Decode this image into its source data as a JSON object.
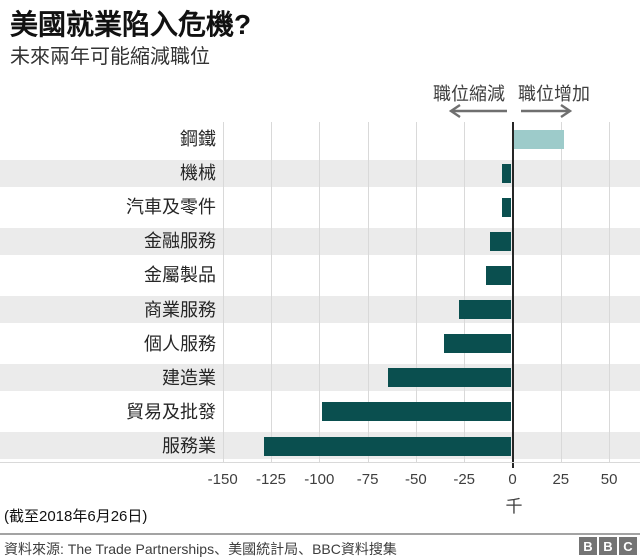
{
  "header": {
    "title": "美國就業陷入危機?",
    "subtitle": "未來兩年可能縮減職位"
  },
  "annotations": {
    "decrease_label": "職位縮減",
    "increase_label": "職位增加"
  },
  "chart_data": {
    "type": "bar",
    "orientation": "horizontal",
    "title": "美國就業陷入危機?",
    "subtitle": "未來兩年可能縮減職位",
    "categories": [
      "鋼鐵",
      "機械",
      "汽車及零件",
      "金融服務",
      "金屬製品",
      "商業服務",
      "個人服務",
      "建造業",
      "貿易及批發",
      "服務業"
    ],
    "values": [
      26,
      -5,
      -5,
      -11,
      -13,
      -27,
      -35,
      -64,
      -98,
      -128
    ],
    "unit_label": "千",
    "xticks": [
      -150,
      -125,
      -100,
      -75,
      -50,
      -25,
      0,
      25,
      50
    ],
    "xlim": [
      -150,
      50
    ],
    "grid": "vertical-on",
    "legend": "none",
    "row_stripes": "alternating",
    "colors": {
      "bar_negative": "#0a4f4f",
      "bar_positive": "#9dcbca",
      "stripe": "#ebebeb",
      "gridline": "#d9d9d9",
      "zero_line": "#262626",
      "arrow": "#6f6f6f"
    }
  },
  "footnote": "(截至2018年6月26日)",
  "source": "資料來源: The Trade Partnerships、美國統計局、BBC資料搜集",
  "logo": {
    "letters": [
      "B",
      "B",
      "C"
    ]
  }
}
